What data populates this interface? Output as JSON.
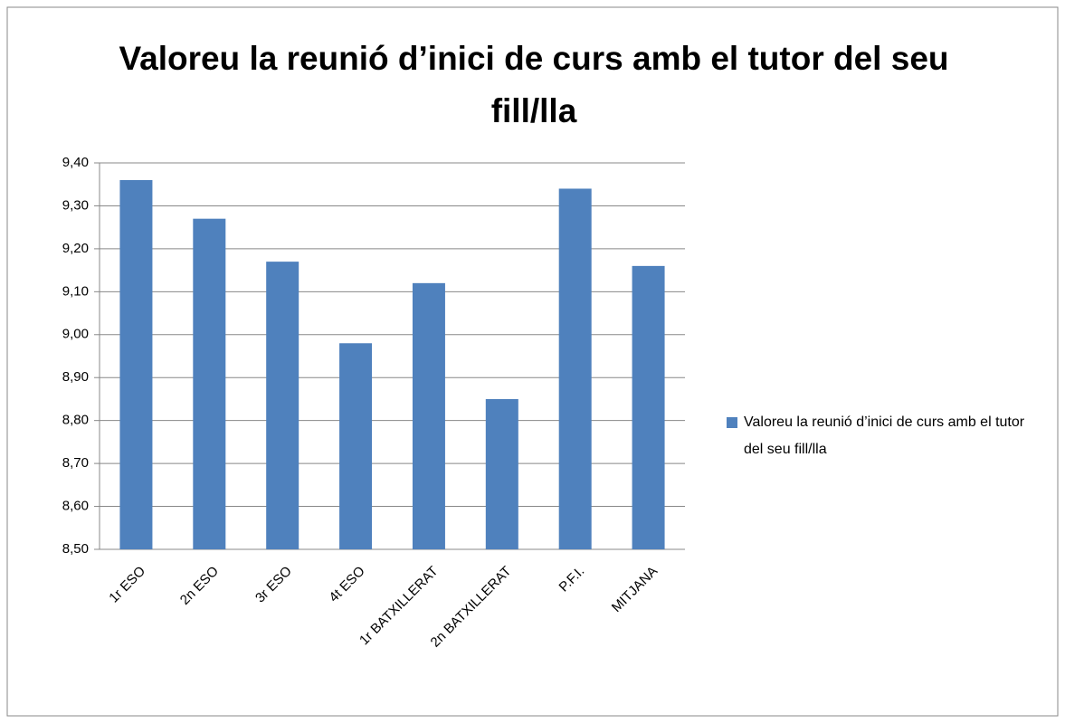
{
  "chart_data": {
    "type": "bar",
    "title": "Valoreu la reunió d’inici de curs amb el tutor del seu fill/lla",
    "categories": [
      "1r ESO",
      "2n ESO",
      "3r ESO",
      "4t ESO",
      "1r BATXILLERAT",
      "2n BATXILLERAT",
      "P.F.I.",
      "MITJANA"
    ],
    "series": [
      {
        "name": "Valoreu la reunió d’inici de curs amb el tutor del seu fill/lla",
        "color": "#4f81bd",
        "values": [
          9.36,
          9.27,
          9.17,
          8.98,
          9.12,
          8.85,
          9.34,
          9.16
        ]
      }
    ],
    "ylim": [
      8.5,
      9.4
    ],
    "yticks": [
      {
        "value": 8.5,
        "label": "8,50"
      },
      {
        "value": 8.6,
        "label": "8,60"
      },
      {
        "value": 8.7,
        "label": "8,70"
      },
      {
        "value": 8.8,
        "label": "8,80"
      },
      {
        "value": 8.9,
        "label": "8,90"
      },
      {
        "value": 9.0,
        "label": "9,00"
      },
      {
        "value": 9.1,
        "label": "9,10"
      },
      {
        "value": 9.2,
        "label": "9,20"
      },
      {
        "value": 9.3,
        "label": "9,30"
      },
      {
        "value": 9.4,
        "label": "9,40"
      }
    ],
    "grid": true,
    "legend": "right"
  }
}
